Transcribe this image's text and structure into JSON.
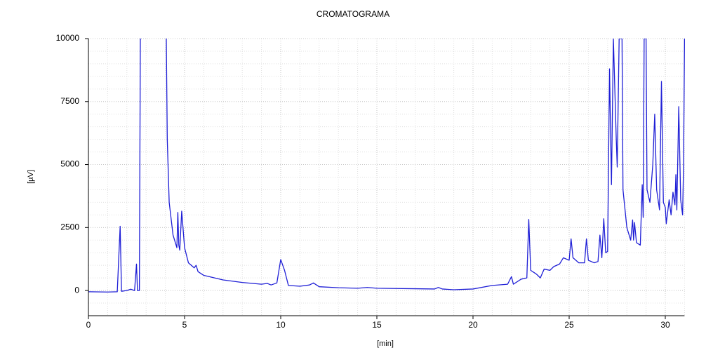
{
  "chart_data": {
    "type": "line",
    "title": "CROMATOGRAMA",
    "x_label": "[min]",
    "y_label": "[µV]",
    "x": [
      0,
      1.0,
      1.5,
      1.65,
      1.72,
      2.0,
      2.2,
      2.4,
      2.5,
      2.55,
      2.65,
      2.7,
      2.75,
      3.4,
      4.05,
      4.1,
      4.2,
      4.4,
      4.6,
      4.65,
      4.7,
      4.75,
      4.85,
      5.0,
      5.2,
      5.5,
      5.6,
      5.7,
      6.0,
      7.0,
      8.0,
      9.0,
      9.3,
      9.5,
      9.8,
      10.0,
      10.2,
      10.4,
      11.0,
      11.5,
      11.7,
      12.0,
      13.0,
      14.0,
      14.5,
      15.0,
      16.0,
      17.0,
      18.0,
      18.2,
      18.4,
      19.0,
      20.0,
      21.0,
      21.8,
      22.0,
      22.1,
      22.5,
      22.8,
      22.9,
      23.0,
      23.3,
      23.5,
      23.7,
      24.0,
      24.2,
      24.5,
      24.7,
      25.0,
      25.1,
      25.2,
      25.5,
      25.8,
      25.9,
      26.0,
      26.3,
      26.5,
      26.6,
      26.7,
      26.8,
      26.9,
      27.0,
      27.1,
      27.2,
      27.3,
      27.45,
      27.5,
      27.6,
      27.75,
      27.8,
      28.0,
      28.2,
      28.3,
      28.35,
      28.4,
      28.5,
      28.7,
      28.8,
      28.85,
      28.9,
      29.0,
      29.05,
      29.2,
      29.35,
      29.45,
      29.55,
      29.7,
      29.8,
      29.9,
      30.0,
      30.05,
      30.2,
      30.3,
      30.4,
      30.5,
      30.55,
      30.6,
      30.7,
      30.8,
      30.9,
      30.95,
      31.0
    ],
    "values": [
      -50,
      -60,
      -50,
      2550,
      -30,
      0,
      50,
      0,
      1050,
      0,
      0,
      10000,
      10000,
      null,
      10000,
      6000,
      3500,
      2200,
      1700,
      3100,
      1800,
      1600,
      3150,
      1700,
      1100,
      900,
      1000,
      750,
      600,
      420,
      320,
      250,
      280,
      220,
      300,
      1230,
      800,
      200,
      170,
      220,
      300,
      150,
      110,
      90,
      120,
      90,
      80,
      70,
      60,
      120,
      60,
      30,
      60,
      200,
      250,
      550,
      250,
      450,
      500,
      2820,
      800,
      650,
      500,
      850,
      800,
      950,
      1050,
      1300,
      1200,
      2050,
      1300,
      1100,
      1100,
      2050,
      1200,
      1100,
      1150,
      2200,
      1300,
      2850,
      1500,
      1550,
      8800,
      4200,
      10000,
      6000,
      4900,
      10000,
      10000,
      4000,
      2500,
      2000,
      2800,
      2000,
      2700,
      1900,
      1800,
      4200,
      2900,
      10000,
      10000,
      4000,
      3500,
      5000,
      7000,
      4000,
      3200,
      8300,
      3500,
      3300,
      2650,
      3600,
      3000,
      3900,
      3400,
      4600,
      3200,
      7300,
      3600,
      3000,
      5000,
      10000
    ],
    "color": "#1f1fd6",
    "xlim": [
      0,
      31
    ],
    "ylim": [
      -1000,
      10000
    ],
    "xticks": [
      0,
      5,
      10,
      15,
      20,
      25,
      30
    ],
    "yticks": [
      0,
      2500,
      5000,
      7500,
      10000
    ],
    "grid": true
  }
}
